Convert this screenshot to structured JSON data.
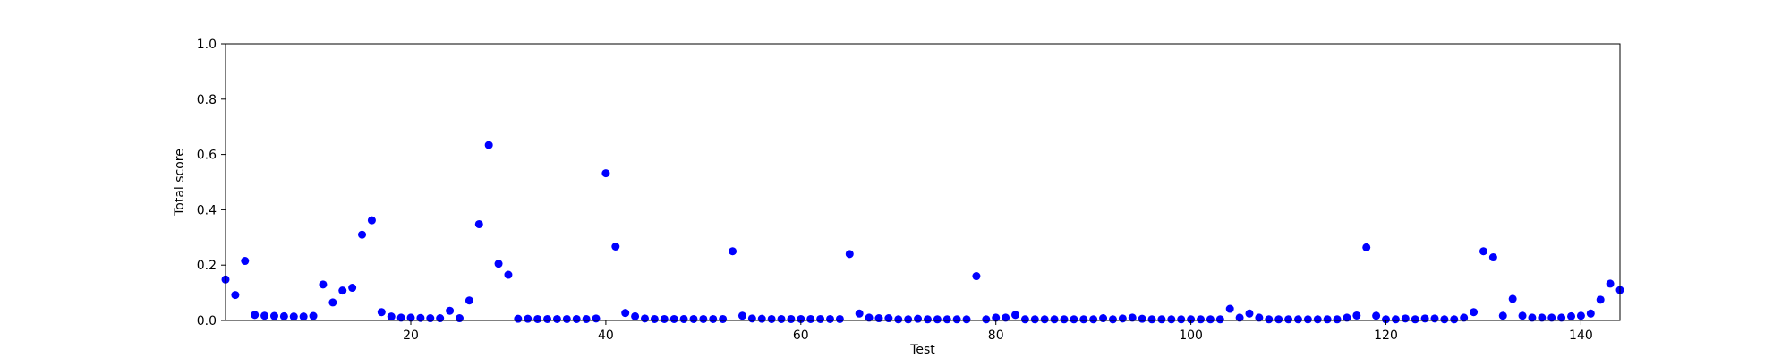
{
  "chart_data": {
    "type": "scatter",
    "title": "",
    "xlabel": "Test",
    "ylabel": "Total score",
    "xlim": [
      1,
      144
    ],
    "ylim": [
      0,
      1
    ],
    "x_ticks": [
      20,
      40,
      60,
      80,
      100,
      120,
      140
    ],
    "x_tick_labels": [
      "20",
      "40",
      "60",
      "80",
      "100",
      "120",
      "140"
    ],
    "y_ticks": [
      0,
      0.2,
      0.4,
      0.6,
      0.8,
      1.0
    ],
    "y_tick_labels": [
      "0.0",
      "0.2",
      "0.4",
      "0.6",
      "0.8",
      "1.0"
    ],
    "grid": false,
    "marker_color": "#0000ff",
    "series": [
      {
        "x": [
          1,
          2,
          3,
          4,
          5,
          6,
          7,
          8,
          9,
          10,
          11,
          12,
          13,
          14,
          15,
          16,
          17,
          18,
          19,
          20,
          21,
          22,
          23,
          24,
          25,
          26,
          27,
          28,
          29,
          30,
          31,
          32,
          33,
          34,
          35,
          36,
          37,
          38,
          39,
          40,
          41,
          42,
          43,
          44,
          45,
          46,
          47,
          48,
          49,
          50,
          51,
          52,
          53,
          54,
          55,
          56,
          57,
          58,
          59,
          60,
          61,
          62,
          63,
          64,
          65,
          66,
          67,
          68,
          69,
          70,
          71,
          72,
          73,
          74,
          75,
          76,
          77,
          78,
          79,
          80,
          81,
          82,
          83,
          84,
          85,
          86,
          87,
          88,
          89,
          90,
          91,
          92,
          93,
          94,
          95,
          96,
          97,
          98,
          99,
          100,
          101,
          102,
          103,
          104,
          105,
          106,
          107,
          108,
          109,
          110,
          111,
          112,
          113,
          114,
          115,
          116,
          117,
          118,
          119,
          120,
          121,
          122,
          123,
          124,
          125,
          126,
          127,
          128,
          129,
          130,
          131,
          132,
          133,
          134,
          135,
          136,
          137,
          138,
          139,
          140,
          141,
          142,
          143,
          144
        ],
        "y": [
          0.148,
          0.092,
          0.215,
          0.02,
          0.017,
          0.016,
          0.015,
          0.014,
          0.014,
          0.016,
          0.13,
          0.065,
          0.108,
          0.118,
          0.31,
          0.362,
          0.03,
          0.014,
          0.01,
          0.01,
          0.009,
          0.008,
          0.008,
          0.035,
          0.008,
          0.072,
          0.348,
          0.634,
          0.205,
          0.165,
          0.006,
          0.006,
          0.005,
          0.005,
          0.005,
          0.005,
          0.005,
          0.005,
          0.007,
          0.532,
          0.267,
          0.027,
          0.015,
          0.007,
          0.005,
          0.005,
          0.005,
          0.005,
          0.005,
          0.005,
          0.005,
          0.005,
          0.25,
          0.017,
          0.007,
          0.006,
          0.005,
          0.005,
          0.005,
          0.005,
          0.005,
          0.005,
          0.005,
          0.005,
          0.24,
          0.025,
          0.01,
          0.008,
          0.008,
          0.004,
          0.004,
          0.006,
          0.004,
          0.004,
          0.004,
          0.004,
          0.004,
          0.16,
          0.004,
          0.01,
          0.01,
          0.02,
          0.004,
          0.004,
          0.004,
          0.004,
          0.004,
          0.004,
          0.004,
          0.004,
          0.008,
          0.004,
          0.007,
          0.01,
          0.006,
          0.004,
          0.004,
          0.004,
          0.004,
          0.004,
          0.004,
          0.004,
          0.004,
          0.042,
          0.01,
          0.025,
          0.01,
          0.004,
          0.004,
          0.004,
          0.004,
          0.004,
          0.004,
          0.004,
          0.004,
          0.01,
          0.018,
          0.264,
          0.017,
          0.004,
          0.004,
          0.007,
          0.004,
          0.007,
          0.007,
          0.004,
          0.004,
          0.01,
          0.03,
          0.25,
          0.228,
          0.017,
          0.078,
          0.017,
          0.01,
          0.01,
          0.01,
          0.01,
          0.015,
          0.017,
          0.025,
          0.075,
          0.133,
          0.11
        ]
      }
    ]
  }
}
